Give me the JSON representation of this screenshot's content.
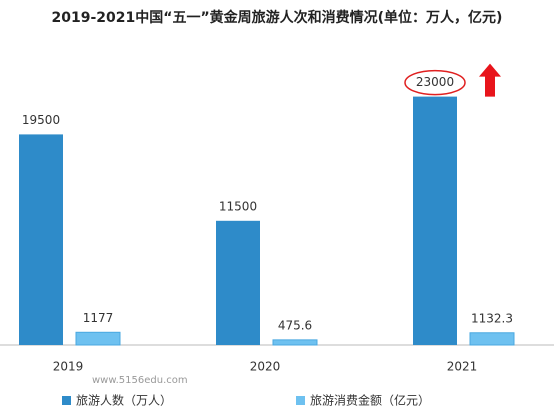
{
  "chart_data": {
    "type": "bar",
    "title": "2019-2021中国“五一”黄金周旅游人次和消费情况(单位：万人，亿元)",
    "categories": [
      "2019",
      "2020",
      "2021"
    ],
    "series": [
      {
        "name": "旅游人数（万人）",
        "color": "#2e8bc9",
        "values": [
          19500,
          11500,
          23000
        ]
      },
      {
        "name": "旅游消费金额（亿元）",
        "color": "#6ec1f0",
        "values": [
          1177,
          475.6,
          1132.3
        ]
      }
    ],
    "ylim": [
      0,
      25000
    ],
    "legend": "bottom",
    "watermark": "www.5156edu.com"
  }
}
